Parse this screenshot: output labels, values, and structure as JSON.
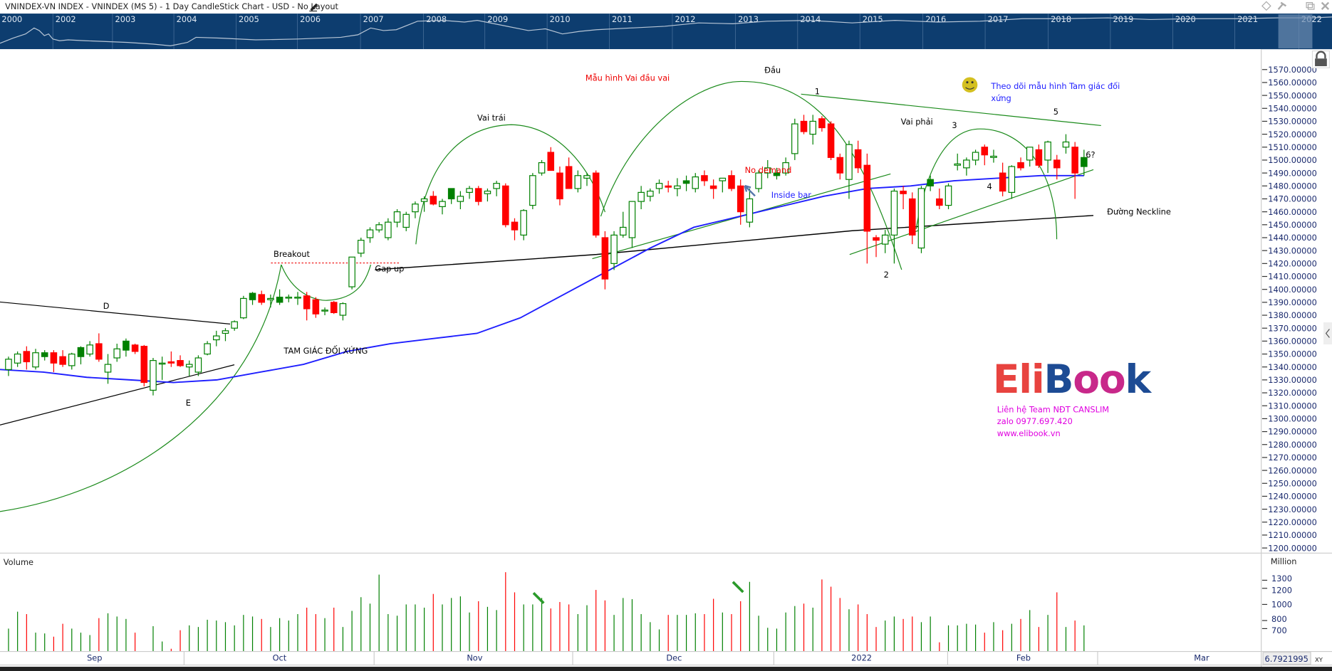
{
  "window": {
    "title": "VNINDEX-VN INDEX - VNINDEX (MS 5) - 1 Day CandleStick Chart - USD - No Layout",
    "controls": [
      "diamond-icon",
      "pin-icon",
      "restore-icon",
      "close-icon"
    ]
  },
  "navigator": {
    "years": [
      "2000",
      "2002",
      "2003",
      "2004",
      "2005",
      "2006",
      "2007",
      "2008",
      "2009",
      "2010",
      "2011",
      "2012",
      "2013",
      "2014",
      "2015",
      "2016",
      "2017",
      "2018",
      "2019",
      "2020",
      "2021",
      "2022"
    ]
  },
  "price_axis": {
    "labels": [
      "1570.00000",
      "1560.00000",
      "1550.00000",
      "1540.00000",
      "1530.00000",
      "1520.00000",
      "1510.00000",
      "1500.00000",
      "1490.00000",
      "1480.00000",
      "1470.00000",
      "1460.00000",
      "1450.00000",
      "1440.00000",
      "1430.00000",
      "1420.00000",
      "1410.00000",
      "1400.00000",
      "1390.00000",
      "1380.00000",
      "1370.00000",
      "1360.00000",
      "1350.00000",
      "1340.00000",
      "1330.00000",
      "1320.00000",
      "1310.00000",
      "1300.00000",
      "1290.00000",
      "1280.00000",
      "1270.00000",
      "1260.00000",
      "1250.00000",
      "1240.00000",
      "1230.00000",
      "1220.00000",
      "1210.00000",
      "1200.00000"
    ]
  },
  "volume_panel": {
    "title": "Volume",
    "unit": "Million",
    "ticks": [
      "1300",
      "1200",
      "1000",
      "800",
      "700"
    ]
  },
  "time_axis": {
    "labels": [
      "Sep",
      "Oct",
      "Nov",
      "Dec",
      "2022",
      "Feb",
      "Mar"
    ],
    "readout": "6.7921995",
    "xy_button": "XY"
  },
  "annotations": {
    "pattern_title": "Mẫu hình Vai đầu vai",
    "head": "Đầu",
    "left_shoulder": "Vai trái",
    "right_shoulder": "Vai phải",
    "breakout": "Breakout",
    "gap_up": "Gap up",
    "sym_triangle": "TAM GIÁC ĐỐI XỨNG",
    "d": "D",
    "e": "E",
    "no_demand": "No demand",
    "inside_bar": "Inside bar",
    "neckline": "Đường Neckline",
    "p1": "1",
    "p2": "2",
    "p3": "3",
    "p4": "4",
    "p5": "5",
    "p6": "6?",
    "follow_note_1": "Theo dõi mẫu hình Tam giác đối",
    "follow_note_2": "xứng"
  },
  "watermark": {
    "logo": "EliBook",
    "line1": "Liên hệ Team NĐT CANSLIM",
    "line2": "zalo 0977.697.420",
    "line3": "www.elibook.vn"
  },
  "colors": {
    "up": "#008000",
    "down": "#ff0000",
    "ma": "#1f1fff",
    "nav_bg": "#0d3d6f",
    "text_blue": "#1a2a6e",
    "magenta": "#e000e0"
  },
  "chart_data": {
    "type": "candlestick",
    "title": "VNINDEX - 1 Day",
    "ylim": [
      1200,
      1575
    ],
    "volume_ylim": [
      416,
      1450
    ],
    "candles": [
      [
        1338,
        1348,
        1333,
        1346,
        700
      ],
      [
        1343,
        1352,
        1340,
        1350,
        910
      ],
      [
        1352,
        1356,
        1338,
        1344,
        880
      ],
      [
        1340,
        1354,
        1338,
        1351,
        650
      ],
      [
        1348,
        1353,
        1345,
        1351,
        640,
        "f"
      ],
      [
        1351,
        1353,
        1336,
        1343,
        600
      ],
      [
        1348,
        1353,
        1340,
        1342,
        760
      ],
      [
        1341,
        1351,
        1338,
        1350,
        700
      ],
      [
        1348,
        1356,
        1342,
        1355,
        650,
        "f"
      ],
      [
        1350,
        1360,
        1348,
        1357,
        620
      ],
      [
        1358,
        1366,
        1344,
        1346,
        830
      ],
      [
        1336,
        1350,
        1327,
        1342,
        890
      ],
      [
        1347,
        1358,
        1344,
        1354,
        850
      ],
      [
        1353,
        1362,
        1348,
        1360,
        820,
        "f"
      ],
      [
        1357,
        1358,
        1350,
        1352,
        650
      ],
      [
        1356,
        1357,
        1325,
        1328,
        420
      ],
      [
        1322,
        1347,
        1318,
        1345,
        730
      ],
      [
        1343,
        1348,
        1330,
        1343,
        540
      ],
      [
        1344,
        1352,
        1340,
        1343,
        450
      ],
      [
        1345,
        1349,
        1340,
        1341,
        680
      ],
      [
        1340,
        1345,
        1333,
        1342,
        740
      ],
      [
        1336,
        1349,
        1333,
        1347,
        720
      ],
      [
        1350,
        1360,
        1349,
        1358,
        810
      ],
      [
        1361,
        1368,
        1356,
        1364,
        800
      ],
      [
        1366,
        1370,
        1360,
        1368,
        780
      ],
      [
        1370,
        1376,
        1368,
        1375,
        740
      ],
      [
        1378,
        1395,
        1377,
        1393,
        870
      ],
      [
        1392,
        1398,
        1388,
        1397,
        850,
        "f"
      ],
      [
        1396,
        1399,
        1388,
        1390,
        820
      ],
      [
        1392,
        1396,
        1386,
        1393,
        720
      ],
      [
        1390,
        1400,
        1388,
        1394,
        830,
        "f"
      ],
      [
        1394,
        1396,
        1390,
        1394,
        800
      ],
      [
        1394,
        1398,
        1388,
        1394,
        880
      ],
      [
        1395,
        1398,
        1376,
        1385,
        960
      ],
      [
        1392,
        1394,
        1378,
        1381,
        880
      ],
      [
        1384,
        1386,
        1380,
        1384,
        830
      ],
      [
        1390,
        1391,
        1381,
        1382,
        960
      ],
      [
        1380,
        1390,
        1376,
        1389,
        720
      ],
      [
        1402,
        1425,
        1400,
        1425,
        920
      ],
      [
        1428,
        1440,
        1425,
        1438,
        1090
      ],
      [
        1440,
        1448,
        1436,
        1446,
        1010
      ],
      [
        1446,
        1452,
        1444,
        1450,
        1370
      ],
      [
        1440,
        1455,
        1438,
        1452,
        880
      ],
      [
        1452,
        1462,
        1448,
        1460,
        860
      ],
      [
        1448,
        1460,
        1445,
        1458,
        1000
      ],
      [
        1460,
        1468,
        1455,
        1466,
        1000
      ],
      [
        1468,
        1472,
        1460,
        1470,
        960
      ],
      [
        1472,
        1476,
        1465,
        1466,
        1130
      ],
      [
        1464,
        1470,
        1458,
        1468,
        1000
      ],
      [
        1470,
        1478,
        1466,
        1478,
        1080,
        "f"
      ],
      [
        1468,
        1476,
        1462,
        1472,
        1100
      ],
      [
        1475,
        1480,
        1470,
        1478,
        900
      ],
      [
        1478,
        1480,
        1465,
        1468,
        1040
      ],
      [
        1474,
        1478,
        1468,
        1476,
        970
      ],
      [
        1478,
        1484,
        1472,
        1482,
        930
      ],
      [
        1480,
        1482,
        1448,
        1450,
        1400
      ],
      [
        1452,
        1455,
        1438,
        1446,
        1150
      ],
      [
        1442,
        1462,
        1438,
        1461,
        1000
      ],
      [
        1465,
        1490,
        1462,
        1488,
        1000
      ],
      [
        1490,
        1500,
        1488,
        1498,
        1080
      ],
      [
        1506,
        1510,
        1495,
        1492,
        950
      ],
      [
        1490,
        1495,
        1465,
        1470,
        1030
      ],
      [
        1495,
        1502,
        1480,
        1478,
        1000
      ],
      [
        1478,
        1492,
        1475,
        1488,
        880
      ],
      [
        1486,
        1490,
        1480,
        1488,
        990
      ],
      [
        1490,
        1492,
        1440,
        1442,
        1180
      ],
      [
        1440,
        1445,
        1400,
        1408,
        1050
      ],
      [
        1420,
        1445,
        1415,
        1442,
        870
      ],
      [
        1442,
        1460,
        1440,
        1448,
        1080
      ],
      [
        1440,
        1465,
        1432,
        1468,
        1065
      ],
      [
        1468,
        1480,
        1462,
        1475,
        880
      ],
      [
        1472,
        1478,
        1468,
        1476,
        780
      ],
      [
        1478,
        1485,
        1474,
        1482,
        690
      ],
      [
        1480,
        1484,
        1475,
        1479,
        870
      ],
      [
        1478,
        1486,
        1472,
        1480,
        870
      ],
      [
        1482,
        1488,
        1476,
        1484,
        870,
        "f"
      ],
      [
        1478,
        1490,
        1475,
        1487,
        890
      ],
      [
        1488,
        1492,
        1480,
        1484,
        880
      ],
      [
        1480,
        1485,
        1470,
        1478,
        1070
      ],
      [
        1484,
        1486,
        1475,
        1486,
        900
      ],
      [
        1488,
        1492,
        1476,
        1478,
        880
      ],
      [
        1480,
        1485,
        1450,
        1460,
        1040
      ],
      [
        1452,
        1478,
        1448,
        1470,
        1280
      ],
      [
        1478,
        1492,
        1475,
        1490,
        860
      ],
      [
        1490,
        1500,
        1486,
        1494,
        710
      ],
      [
        1488,
        1494,
        1485,
        1490,
        700,
        "f"
      ],
      [
        1490,
        1502,
        1488,
        1498,
        900
      ],
      [
        1505,
        1532,
        1500,
        1528,
        980
      ],
      [
        1530,
        1535,
        1520,
        1522,
        1010
      ],
      [
        1520,
        1535,
        1512,
        1530,
        960
      ],
      [
        1532,
        1534,
        1522,
        1525,
        1310
      ],
      [
        1528,
        1530,
        1500,
        1502,
        1220
      ],
      [
        1502,
        1505,
        1485,
        1490,
        1080
      ],
      [
        1485,
        1515,
        1470,
        1512,
        940
      ],
      [
        1508,
        1515,
        1490,
        1494,
        1000
      ],
      [
        1496,
        1505,
        1420,
        1445,
        880
      ],
      [
        1440,
        1442,
        1425,
        1438,
        720
      ],
      [
        1435,
        1446,
        1428,
        1442,
        800
      ],
      [
        1442,
        1478,
        1420,
        1476,
        850
      ],
      [
        1476,
        1480,
        1462,
        1474,
        820
      ],
      [
        1470,
        1475,
        1435,
        1442,
        850
      ],
      [
        1432,
        1480,
        1428,
        1478,
        780
      ],
      [
        1480,
        1488,
        1476,
        1485,
        850,
        "f"
      ],
      [
        1470,
        1478,
        1462,
        1465,
        530
      ],
      [
        1465,
        1482,
        1462,
        1480,
        740
      ],
      [
        1496,
        1505,
        1492,
        1497,
        740
      ],
      [
        1494,
        1502,
        1488,
        1500,
        760
      ],
      [
        1500,
        1508,
        1496,
        1506,
        750
      ],
      [
        1510,
        1512,
        1496,
        1504,
        650,
        "f"
      ],
      [
        1502,
        1508,
        1498,
        1503,
        780
      ],
      [
        1490,
        1498,
        1472,
        1476,
        680
      ],
      [
        1475,
        1496,
        1470,
        1495,
        760
      ],
      [
        1498,
        1502,
        1492,
        1494,
        820
      ],
      [
        1500,
        1510,
        1495,
        1510,
        930
      ],
      [
        1508,
        1512,
        1494,
        1496,
        720
      ],
      [
        1500,
        1515,
        1490,
        1514,
        870
      ],
      [
        1500,
        1504,
        1485,
        1494,
        1150
      ],
      [
        1510,
        1520,
        1505,
        1514,
        720
      ],
      [
        1510,
        1514,
        1470,
        1490,
        800
      ],
      [
        1495,
        1508,
        1488,
        1502,
        740,
        "f"
      ]
    ],
    "moving_average": [
      1338,
      1336,
      1332,
      1330,
      1328,
      1330,
      1336,
      1342,
      1352,
      1358,
      1362,
      1366,
      1378,
      1396,
      1414,
      1432,
      1448,
      1456,
      1464,
      1472,
      1478,
      1480,
      1484,
      1486,
      1488,
      1488
    ]
  }
}
